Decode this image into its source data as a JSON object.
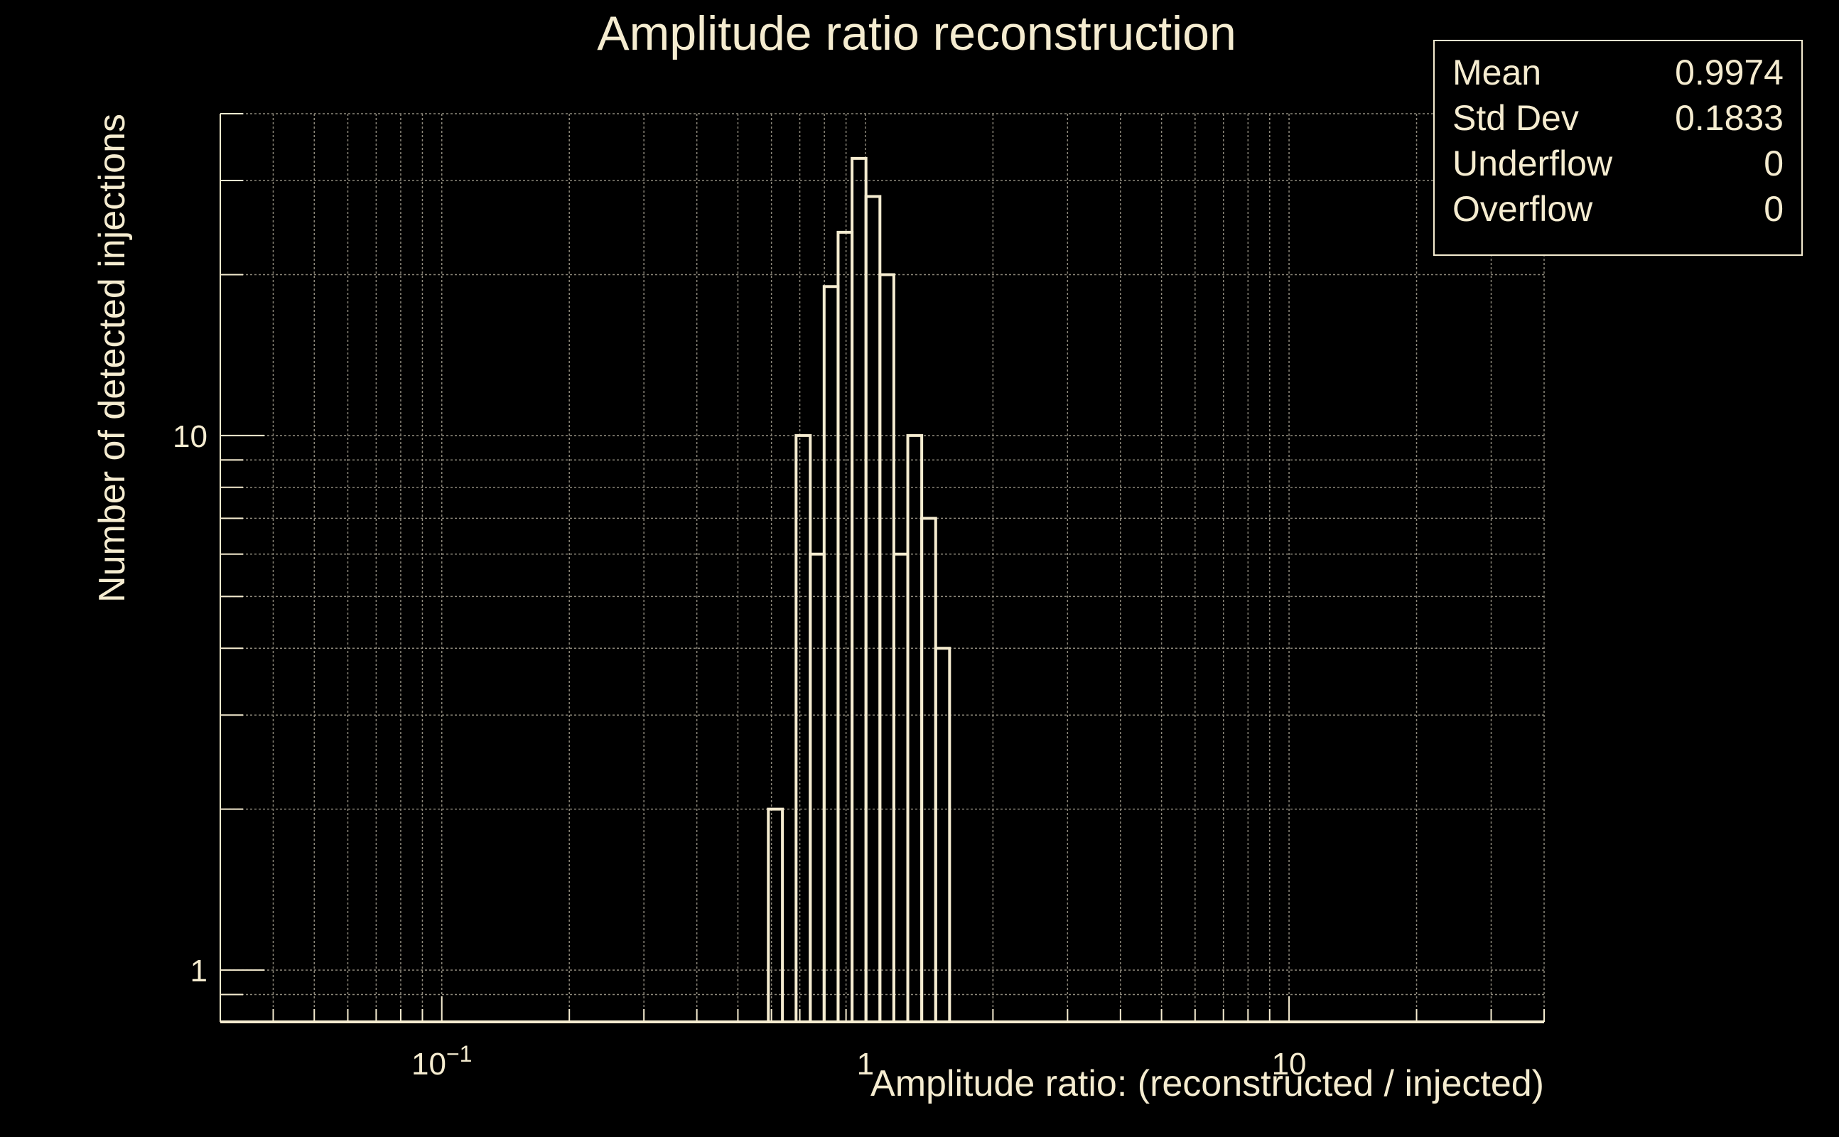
{
  "colors": {
    "background": "#000000",
    "foreground": "#f5ecd0",
    "grid": "#8c877a"
  },
  "chart_data": {
    "type": "bar",
    "title": "Amplitude ratio reconstruction",
    "xlabel": "Amplitude ratio: (reconstructed / injected)",
    "ylabel": "Number of detected injections",
    "x_scale": "log",
    "y_scale": "log",
    "xlim": [
      0.03,
      40
    ],
    "ylim": [
      0.8,
      40
    ],
    "grid": true,
    "x_ticks": [
      {
        "value": 0.1,
        "base": "10",
        "exp": "−1"
      },
      {
        "value": 1,
        "base": "1",
        "exp": ""
      },
      {
        "value": 10,
        "base": "10",
        "exp": ""
      }
    ],
    "y_ticks": [
      {
        "value": 1,
        "label": "1"
      },
      {
        "value": 10,
        "label": "10"
      }
    ],
    "bins": [
      {
        "x_low": 0.59,
        "x_high": 0.637,
        "count": 2
      },
      {
        "x_low": 0.637,
        "x_high": 0.686,
        "count": 0
      },
      {
        "x_low": 0.686,
        "x_high": 0.741,
        "count": 10
      },
      {
        "x_low": 0.741,
        "x_high": 0.799,
        "count": 6
      },
      {
        "x_low": 0.799,
        "x_high": 0.862,
        "count": 19
      },
      {
        "x_low": 0.862,
        "x_high": 0.93,
        "count": 24
      },
      {
        "x_low": 0.93,
        "x_high": 1.003,
        "count": 33
      },
      {
        "x_low": 1.003,
        "x_high": 1.082,
        "count": 28
      },
      {
        "x_low": 1.082,
        "x_high": 1.167,
        "count": 20
      },
      {
        "x_low": 1.167,
        "x_high": 1.259,
        "count": 6
      },
      {
        "x_low": 1.259,
        "x_high": 1.358,
        "count": 10
      },
      {
        "x_low": 1.358,
        "x_high": 1.465,
        "count": 7
      },
      {
        "x_low": 1.465,
        "x_high": 1.58,
        "count": 4
      }
    ],
    "stats": [
      {
        "label": "Mean",
        "value": "0.9974"
      },
      {
        "label": "Std Dev",
        "value": "0.1833"
      },
      {
        "label": "Underflow",
        "value": "0"
      },
      {
        "label": "Overflow",
        "value": "0"
      }
    ],
    "legend_position": "top-right"
  }
}
